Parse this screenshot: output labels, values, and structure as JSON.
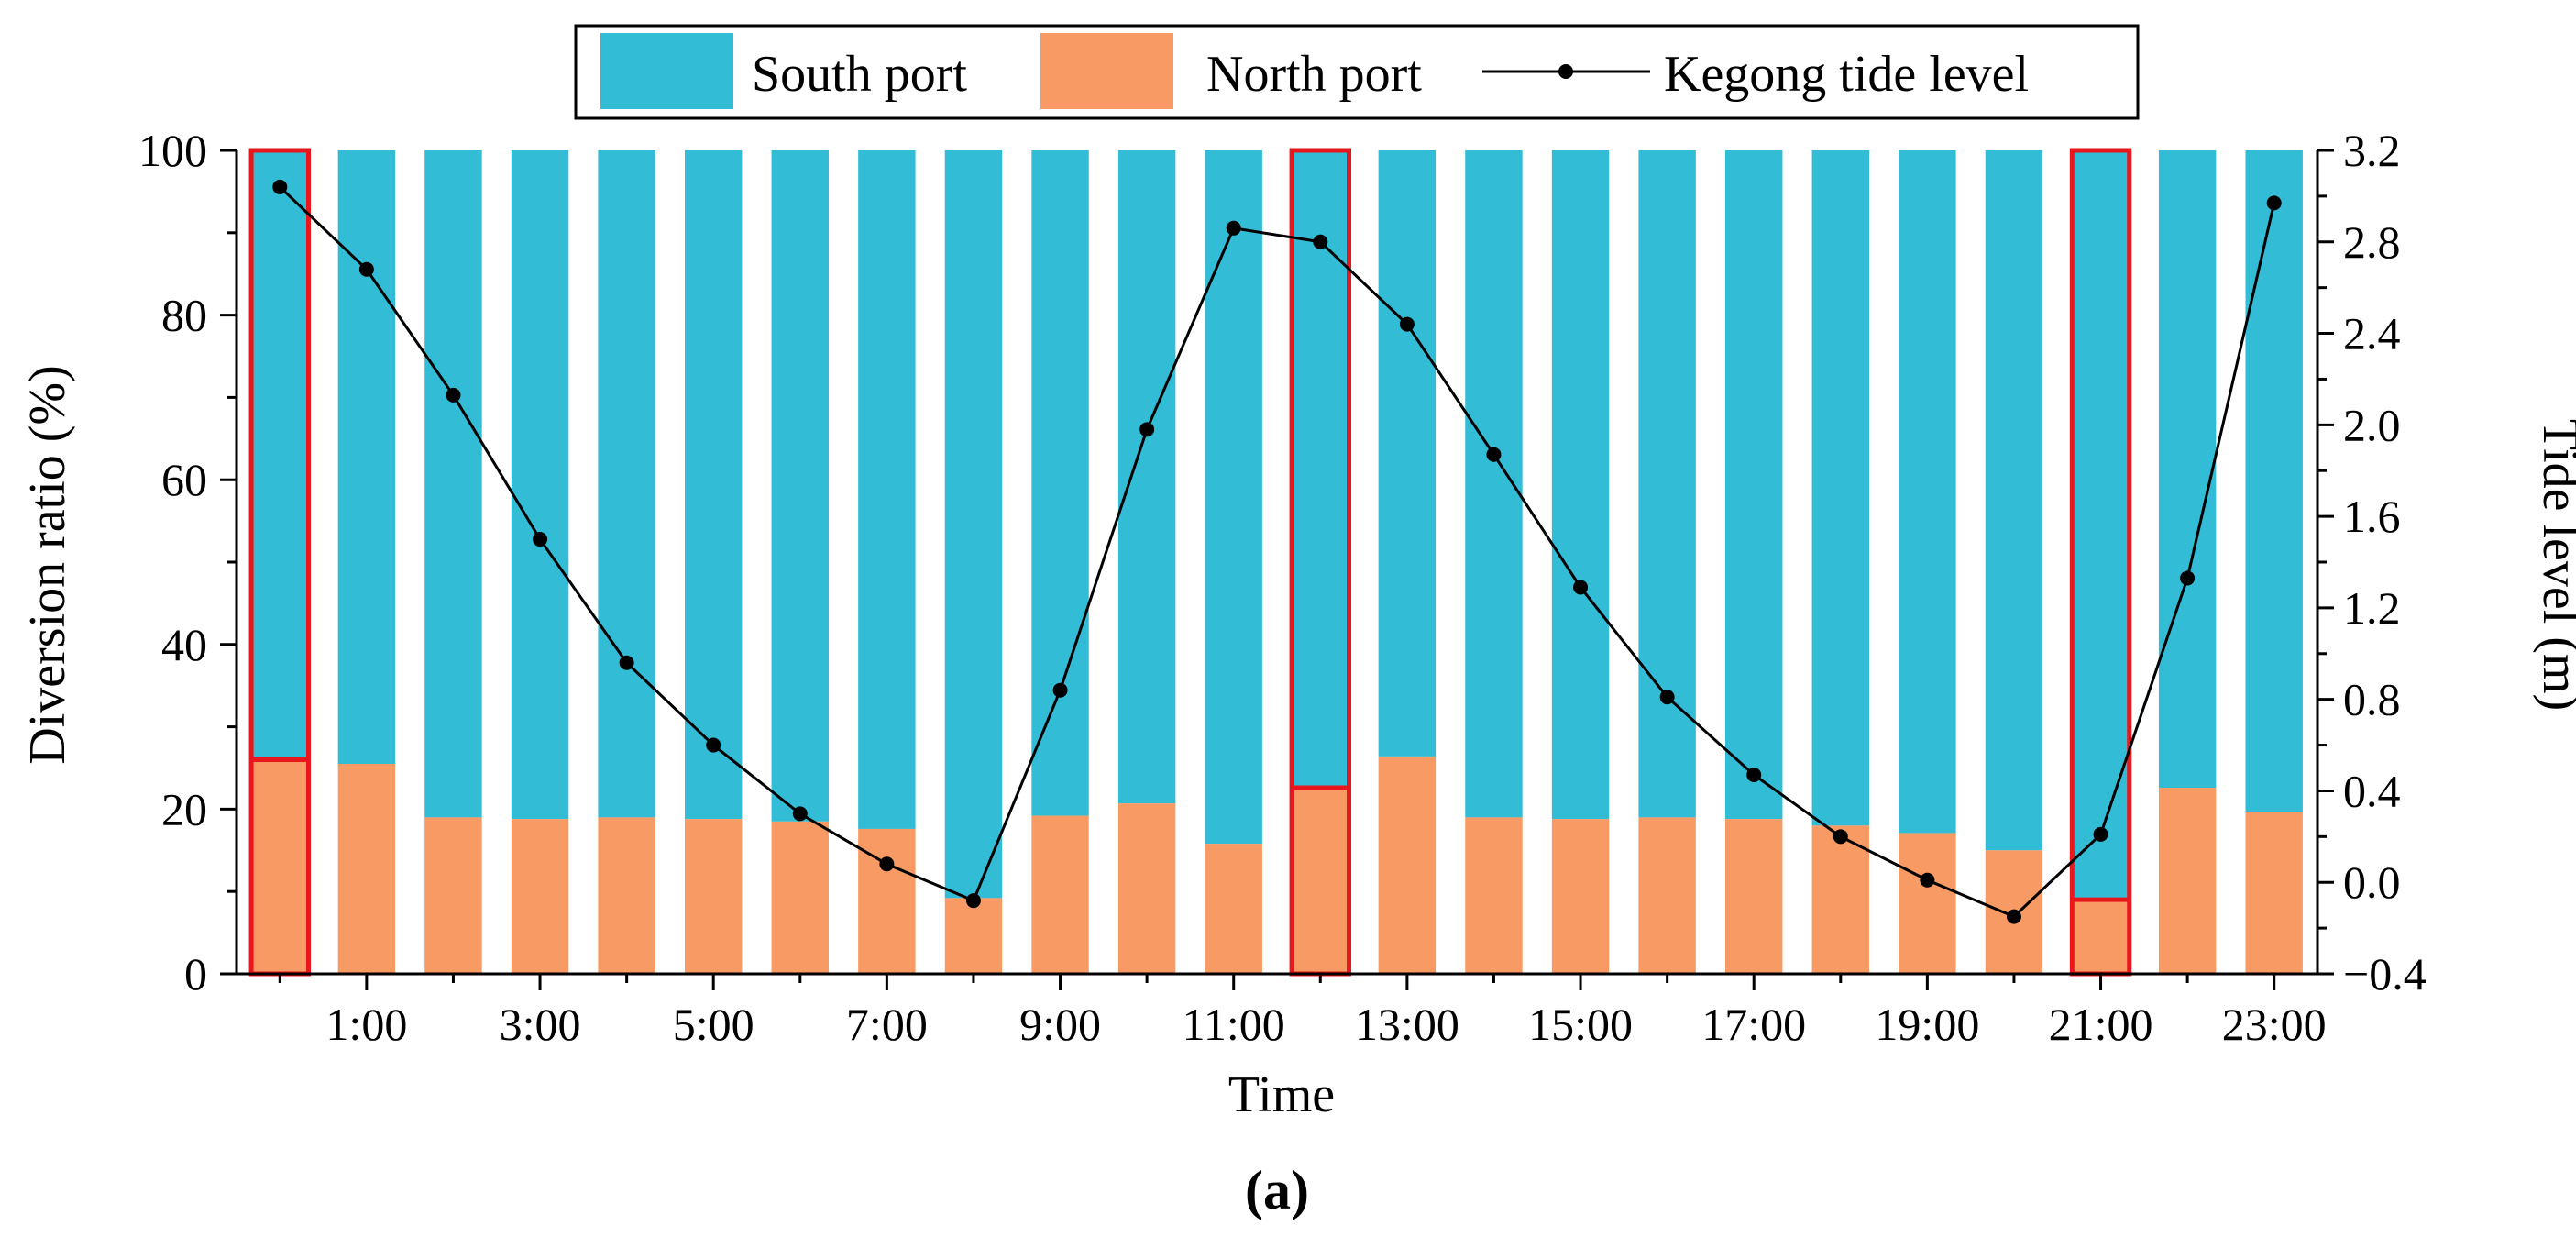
{
  "chart_data": {
    "type": "bar",
    "stacked": true,
    "panel_label": "(a)",
    "xlabel": "Time",
    "ylabel_left": "Diversion ratio (%)",
    "ylabel_right": "Tide level (m)",
    "ylim_left": [
      0,
      100
    ],
    "ylim_right": [
      -0.4,
      3.2
    ],
    "yticks_left": [
      "0",
      "20",
      "40",
      "60",
      "80",
      "100"
    ],
    "yticks_right": [
      "−0.4",
      "0.0",
      "0.4",
      "0.8",
      "1.2",
      "1.6",
      "2.0",
      "2.4",
      "2.8",
      "3.2"
    ],
    "categories": [
      "0:00",
      "1:00",
      "2:00",
      "3:00",
      "4:00",
      "5:00",
      "6:00",
      "7:00",
      "8:00",
      "9:00",
      "10:00",
      "11:00",
      "12:00",
      "13:00",
      "14:00",
      "15:00",
      "16:00",
      "17:00",
      "18:00",
      "19:00",
      "20:00",
      "21:00",
      "22:00",
      "23:00"
    ],
    "xtick_labels": [
      "1:00",
      "3:00",
      "5:00",
      "7:00",
      "9:00",
      "11:00",
      "13:00",
      "15:00",
      "17:00",
      "19:00",
      "21:00",
      "23:00"
    ],
    "grid": false,
    "legend_position": "top-center",
    "series": [
      {
        "name": "North port",
        "kind": "bar",
        "color": "#F79A63",
        "values": [
          26,
          25.5,
          19,
          18.8,
          19,
          18.8,
          18.5,
          17.6,
          9.2,
          19.2,
          20.7,
          15.8,
          22.6,
          26.4,
          19,
          18.8,
          19,
          18.8,
          18,
          17.1,
          15,
          9,
          22.6,
          19.7
        ]
      },
      {
        "name": "South port",
        "kind": "bar",
        "color": "#33BCD5",
        "values": [
          74,
          74.5,
          81,
          81.2,
          81,
          81.2,
          81.5,
          82.4,
          90.8,
          80.8,
          79.3,
          84.2,
          77.4,
          73.6,
          81,
          81.2,
          81,
          81.2,
          82,
          82.9,
          85,
          91,
          77.4,
          80.3
        ]
      },
      {
        "name": "Kegong tide level",
        "kind": "line",
        "axis": "right",
        "color": "#000000",
        "values": [
          3.04,
          2.68,
          2.13,
          1.5,
          0.96,
          0.6,
          0.3,
          0.08,
          -0.08,
          0.84,
          1.98,
          2.86,
          2.8,
          2.44,
          1.87,
          1.29,
          0.81,
          0.47,
          0.2,
          0.01,
          -0.15,
          0.21,
          1.33,
          2.97
        ]
      }
    ],
    "highlighted_categories": [
      "0:00",
      "12:00",
      "21:00"
    ],
    "highlight_color": "#E8171E"
  }
}
